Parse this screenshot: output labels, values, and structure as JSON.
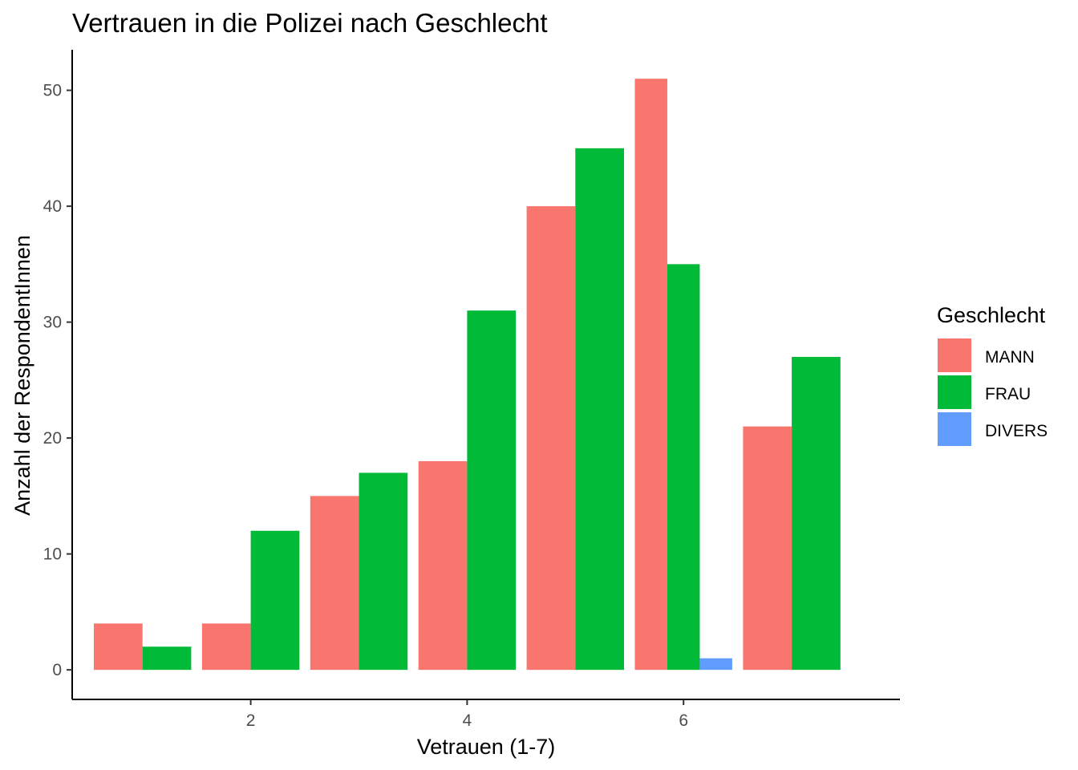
{
  "chart_data": {
    "type": "bar",
    "title": "Vertrauen in die Polizei nach Geschlecht",
    "xlabel": "Vetrauen (1-7)",
    "ylabel": "Anzahl der RespondentInnen",
    "x_ticks": [
      2,
      4,
      6
    ],
    "y_ticks": [
      0,
      10,
      20,
      30,
      40,
      50
    ],
    "xlim": [
      0.35,
      8.0
    ],
    "ylim": [
      -2.55,
      53.5
    ],
    "legend": {
      "title": "Geschlecht",
      "position": "right"
    },
    "series": [
      {
        "name": "MANN",
        "color": "#F8766D",
        "points": [
          {
            "x": 1,
            "y": 4
          },
          {
            "x": 2,
            "y": 4
          },
          {
            "x": 3,
            "y": 15
          },
          {
            "x": 4,
            "y": 18
          },
          {
            "x": 5,
            "y": 40
          },
          {
            "x": 6,
            "y": 51
          },
          {
            "x": 7,
            "y": 21
          }
        ]
      },
      {
        "name": "FRAU",
        "color": "#00BA38",
        "points": [
          {
            "x": 1,
            "y": 2
          },
          {
            "x": 2,
            "y": 12
          },
          {
            "x": 3,
            "y": 17
          },
          {
            "x": 4,
            "y": 31
          },
          {
            "x": 5,
            "y": 45
          },
          {
            "x": 6,
            "y": 35
          },
          {
            "x": 7,
            "y": 27
          }
        ]
      },
      {
        "name": "DIVERS",
        "color": "#619CFF",
        "points": [
          {
            "x": 6,
            "y": 1
          }
        ]
      }
    ],
    "grid": false
  }
}
